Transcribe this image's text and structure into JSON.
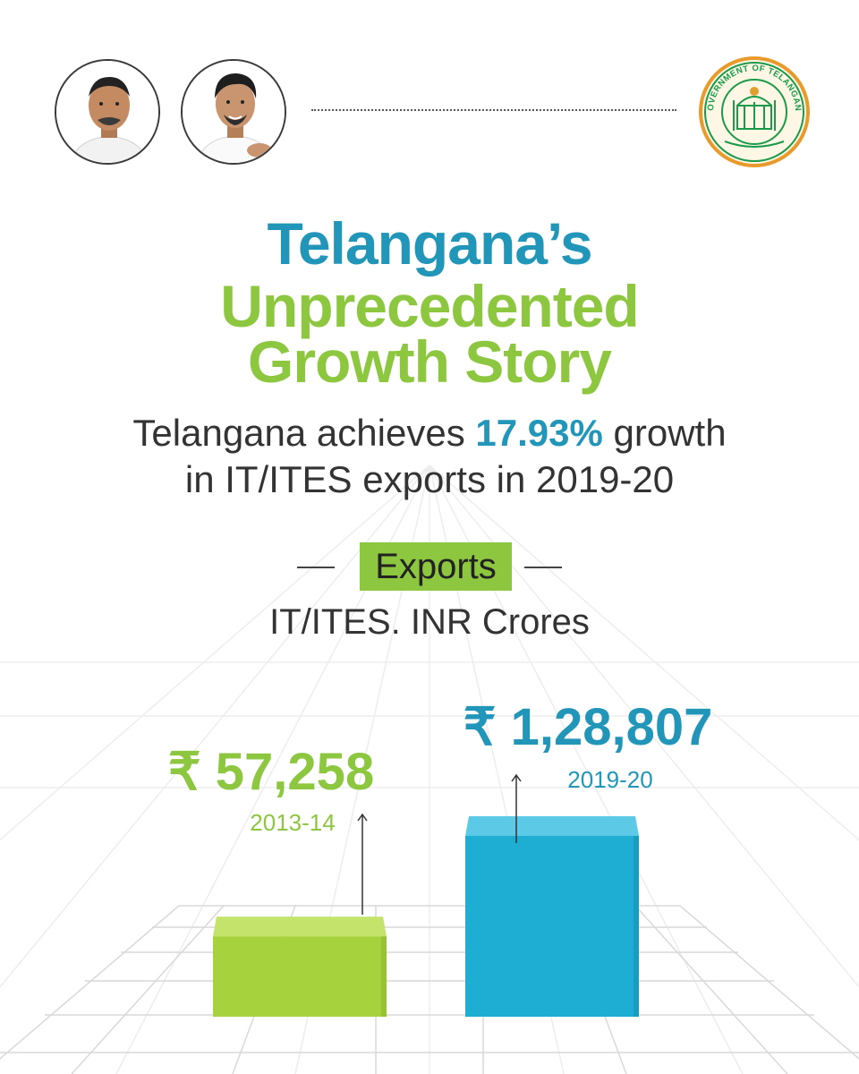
{
  "title": {
    "line1": "Telangana’s",
    "line2": "Unprecedented",
    "line3": "Growth Story"
  },
  "subtitle": {
    "part1": "Telangana achieves ",
    "highlight": "17.93%",
    "part2": " growth",
    "line2": "in IT/ITES exports in 2019-20"
  },
  "section": {
    "tag": "Exports",
    "unit": "IT/ITES. INR Crores"
  },
  "seal": {
    "text": "GOVERNMENT OF TELANGANA",
    "color": "#1a9a4a"
  },
  "colors": {
    "blue": "#2196b8",
    "green": "#8dc63f"
  },
  "chart_data": {
    "type": "bar",
    "categories": [
      "2013-14",
      "2019-20"
    ],
    "values": [
      57258,
      128807
    ],
    "value_labels": [
      "₹ 57,258",
      "₹ 1,28,807"
    ],
    "colors": [
      "#a6d23d",
      "#1faed3"
    ],
    "title": "",
    "xlabel": "",
    "ylabel": "",
    "grid": true
  }
}
